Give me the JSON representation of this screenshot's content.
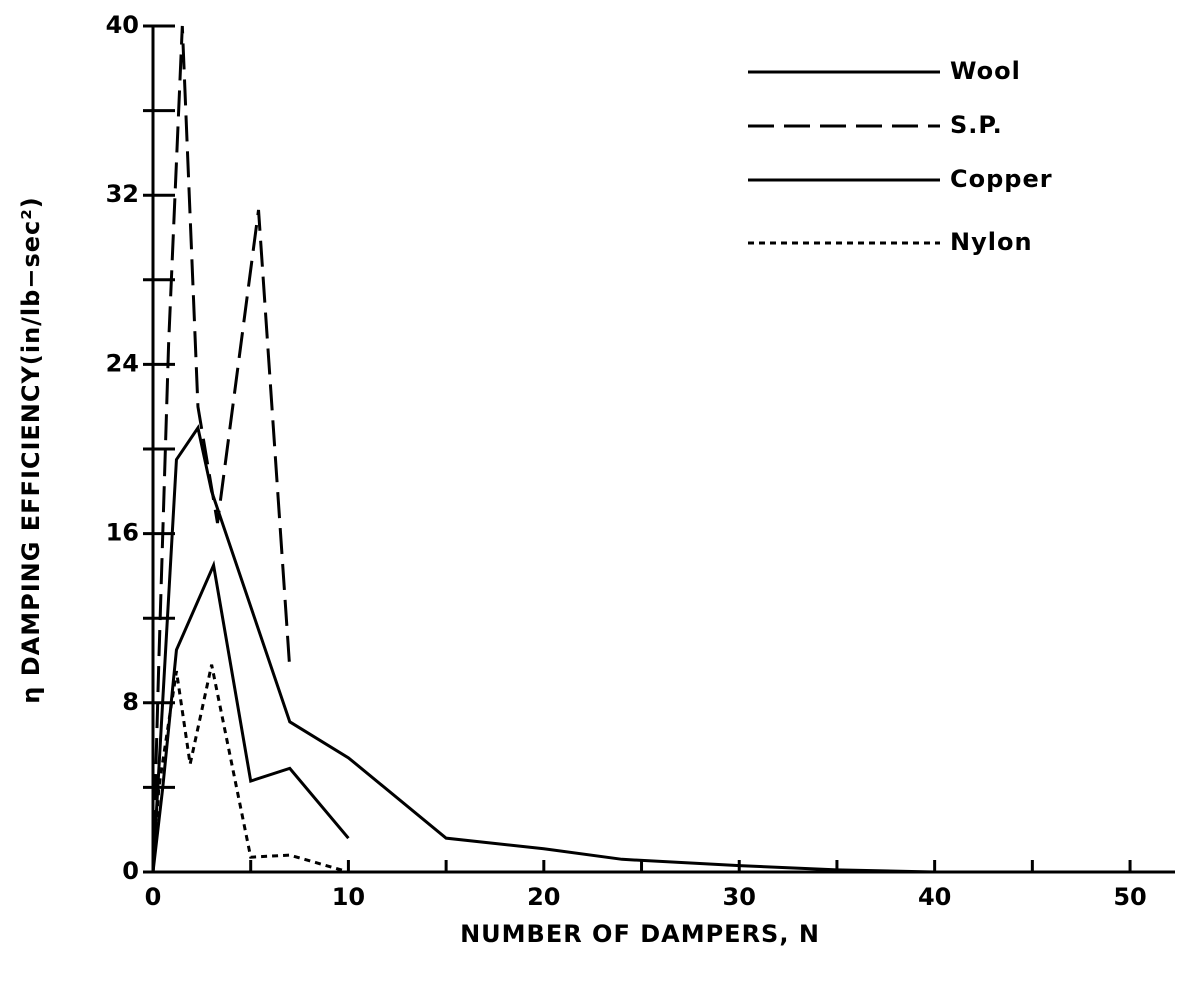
{
  "chart_data": {
    "type": "line",
    "x_label": "NUMBER OF DAMPERS, N",
    "y_label": "η DAMPING EFFICIENCY(in/lb−sec²)",
    "xlim": [
      0,
      52.3
    ],
    "ylim": [
      0,
      40
    ],
    "xticks": [
      0,
      10,
      20,
      30,
      40,
      50
    ],
    "yticks": [
      0,
      8,
      16,
      24,
      32,
      40
    ],
    "x_minor_ticks": [
      5,
      15,
      25,
      35,
      45
    ],
    "y_minor_ticks": [
      4,
      12,
      20,
      28,
      36
    ],
    "legend": "top-right",
    "series": [
      {
        "name": "Wool",
        "color": "#000000",
        "style": "solid",
        "x": [
          0,
          1.2,
          2.3,
          3,
          7,
          10,
          15,
          20,
          24,
          30,
          35,
          40
        ],
        "values": [
          0,
          19.5,
          21,
          18,
          7.1,
          5.4,
          1.6,
          1.1,
          0.6,
          0.3,
          0.1,
          0
        ]
      },
      {
        "name": "S.P.",
        "color": "#000000",
        "style": "dashed",
        "x": [
          0,
          0.3,
          0.8,
          1.5,
          2.3,
          3.3,
          5.4,
          7
        ],
        "values": [
          0,
          10,
          25,
          40,
          22,
          16.5,
          31.3,
          9.6
        ]
      },
      {
        "name": "Copper",
        "color": "#000000",
        "style": "solid",
        "x": [
          0,
          0.5,
          1.2,
          3.1,
          5,
          7,
          10
        ],
        "values": [
          0,
          4,
          10.5,
          14.5,
          4.3,
          4.9,
          1.6
        ]
      },
      {
        "name": "Nylon",
        "color": "#000000",
        "style": "dotted",
        "x": [
          0,
          0.3,
          1.2,
          1.9,
          3,
          5,
          7,
          10
        ],
        "values": [
          0,
          4,
          9.5,
          5.1,
          9.8,
          0.7,
          0.8,
          0
        ]
      }
    ]
  }
}
